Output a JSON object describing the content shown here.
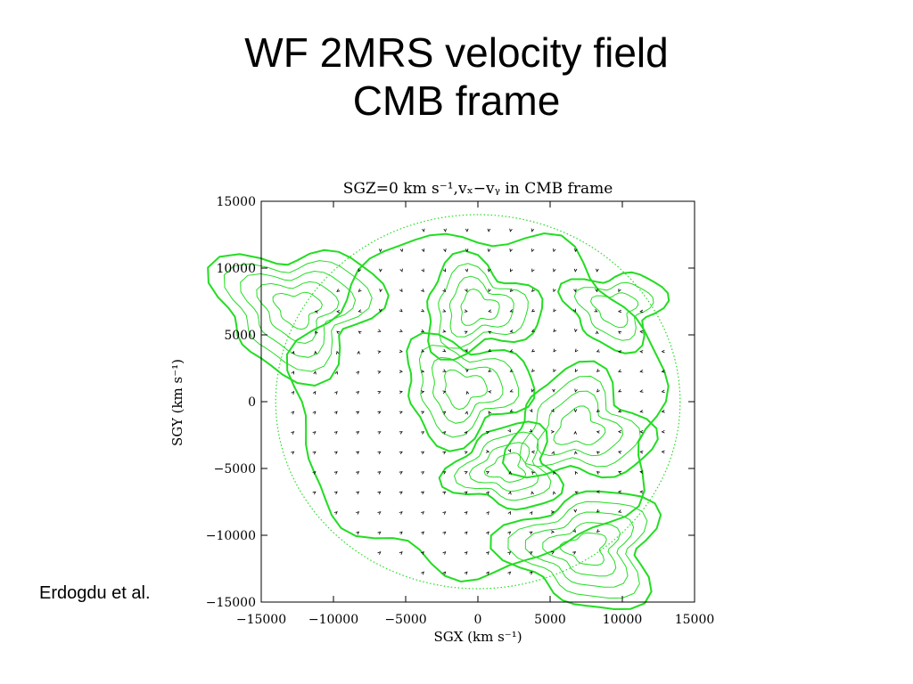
{
  "slide": {
    "title_line1": "WF 2MRS velocity field",
    "title_line2": "CMB frame",
    "credit": "Erdogdu et al."
  },
  "chart_data": {
    "type": "vector-field",
    "title": "SGZ=0  km s⁻¹,vₓ−vᵧ  in CMB frame",
    "xlabel": "SGX (km s⁻¹)",
    "ylabel": "SGY (km s⁻¹)",
    "xlim": [
      -15000,
      15000
    ],
    "ylim": [
      -15000,
      15000
    ],
    "xticks": [
      -15000,
      -10000,
      -5000,
      0,
      5000,
      10000,
      15000
    ],
    "yticks": [
      -15000,
      -10000,
      -5000,
      0,
      5000,
      10000,
      15000
    ],
    "tick_labels_x": [
      "−15000",
      "−10000",
      "−5000",
      "0",
      "5000",
      "10000",
      "15000"
    ],
    "tick_labels_y": [
      "15000",
      "10000",
      "5000",
      "0",
      "−5000",
      "−10000",
      "−15000"
    ],
    "survey_radius": 14000,
    "attractors": [
      {
        "sgx": -12500,
        "sgy": 7000,
        "strength": 1.0
      },
      {
        "sgx": -1000,
        "sgy": 1000,
        "strength": 0.7
      },
      {
        "sgx": 0,
        "sgy": 7000,
        "strength": 0.6
      },
      {
        "sgx": 7000,
        "sgy": -2000,
        "strength": 0.8
      },
      {
        "sgx": 2000,
        "sgy": -5000,
        "strength": 0.5
      },
      {
        "sgx": 7500,
        "sgy": -11000,
        "strength": 0.9
      },
      {
        "sgx": 9500,
        "sgy": 7000,
        "strength": 0.4
      }
    ],
    "colors": {
      "contour": "#22dd22",
      "vector": "#000000",
      "frame": "#000000"
    },
    "grid": false
  }
}
